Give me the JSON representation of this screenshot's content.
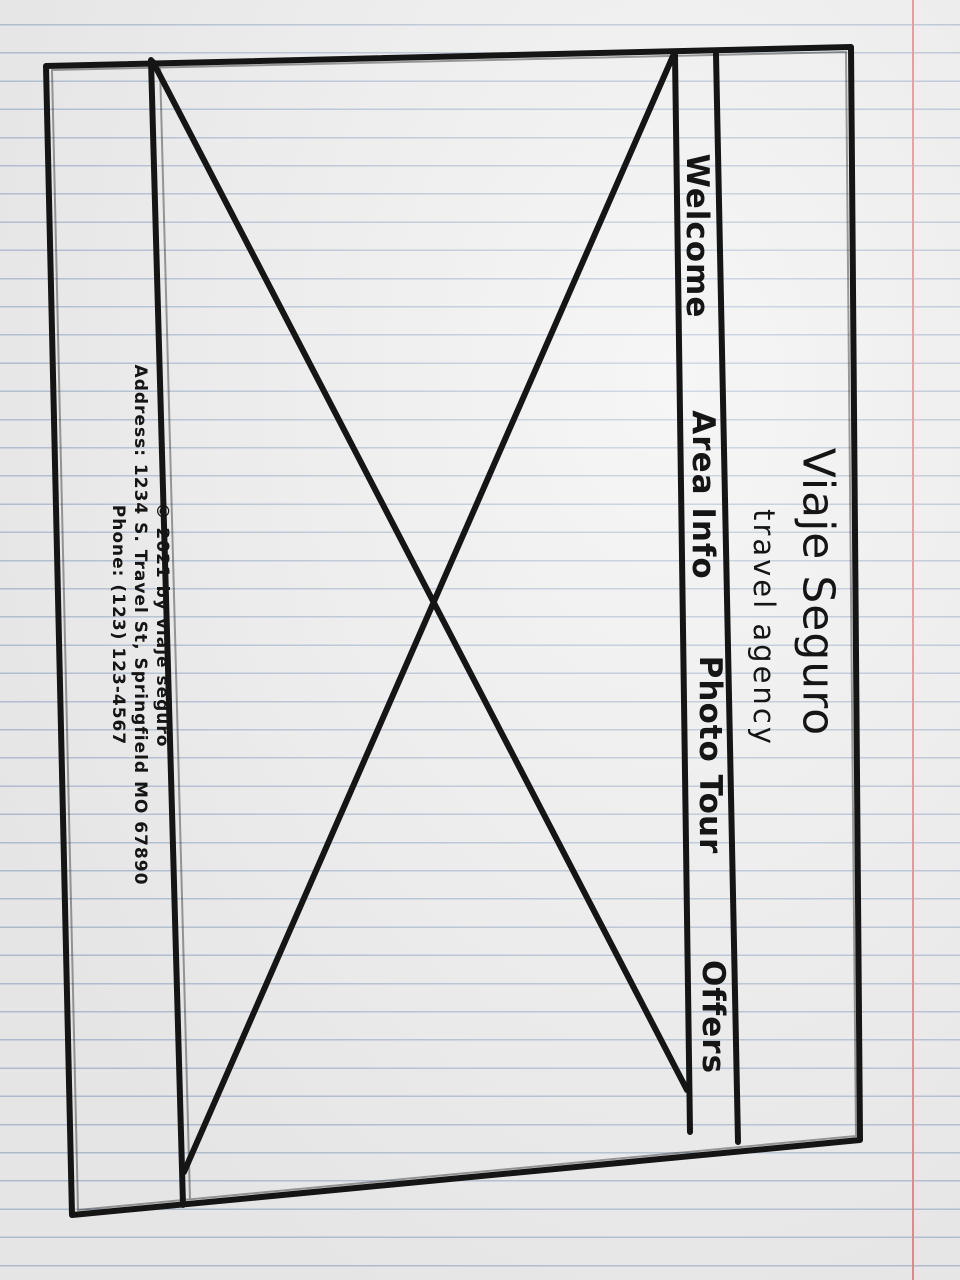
{
  "header": {
    "brand_name": "Viaje Seguro",
    "tagline": "travel agency"
  },
  "nav": {
    "items": [
      {
        "label": "Welcome"
      },
      {
        "label": "Area Info"
      },
      {
        "label": "Photo Tour"
      },
      {
        "label": "Offers"
      }
    ]
  },
  "footer": {
    "copyright": "© 2021 by viaje seguro",
    "address": "Address: 1234 S. Travel St, Springfield MO 67890",
    "phone": "Phone: (123) 123-4567"
  },
  "colors": {
    "ink": "#151515",
    "ruled_line": "#b7c4d6",
    "margin_line": "#e58c91",
    "paper": "#f1f1f1"
  }
}
